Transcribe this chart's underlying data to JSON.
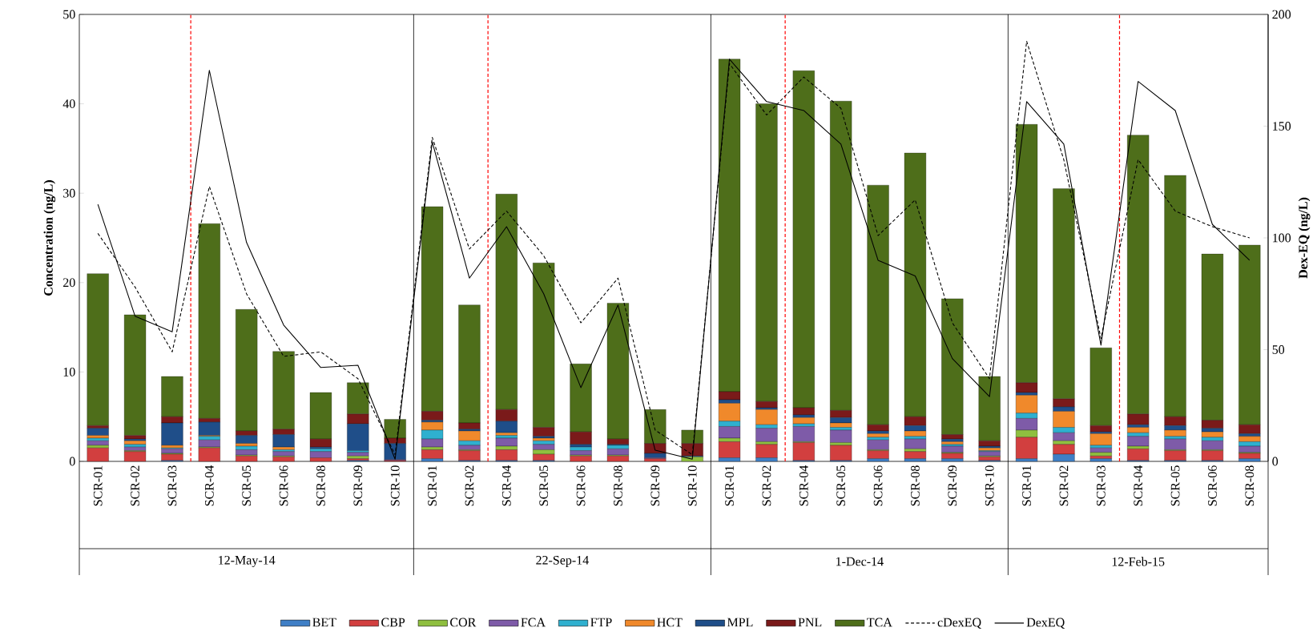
{
  "chart_data": {
    "type": "bar",
    "stacked": true,
    "legend": "bottom",
    "ylabel": "Concentration (ng/L)",
    "y2label": "Dex-EQ (ng/L)",
    "ylim": [
      0,
      50
    ],
    "yticks": [
      0,
      10,
      20,
      30,
      40,
      50
    ],
    "y2lim": [
      0,
      200
    ],
    "y2ticks": [
      0,
      50,
      100,
      150,
      200
    ],
    "categories": [
      "SCR-01",
      "SCR-02",
      "SCR-03",
      "SCR-04",
      "SCR-05",
      "SCR-06",
      "SCR-08",
      "SCR-09",
      "SCR-10",
      "SCR-01",
      "SCR-02",
      "SCR-04",
      "SCR-05",
      "SCR-06",
      "SCR-08",
      "SCR-09",
      "SCR-10",
      "SCR-01",
      "SCR-02",
      "SCR-04",
      "SCR-05",
      "SCR-06",
      "SCR-08",
      "SCR-09",
      "SCR-10",
      "SCR-01",
      "SCR-02",
      "SCR-03",
      "SCR-04",
      "SCR-05",
      "SCR-06",
      "SCR-08"
    ],
    "annotations": [
      "12-May-14",
      "22-Sep-14",
      "1-Dec-14",
      "12-Feb-15"
    ],
    "series": [
      {
        "name": "BET",
        "color": "#3f7fc6",
        "values": [
          0,
          0,
          0.1,
          0,
          0,
          0,
          0,
          0.1,
          0,
          0.3,
          0.1,
          0.1,
          0.1,
          0,
          0,
          0,
          0,
          0.4,
          0.4,
          0.1,
          0.1,
          0.3,
          0.3,
          0.3,
          0.1,
          0.3,
          0.8,
          0.3,
          0.1,
          0.1,
          0.1,
          0.3
        ]
      },
      {
        "name": "CBP",
        "color": "#d23f3f",
        "values": [
          1.5,
          1.1,
          0.7,
          1.5,
          0.6,
          0.5,
          0.4,
          0.2,
          0.1,
          1.0,
          1.1,
          1.2,
          0.7,
          0.6,
          0.6,
          0.3,
          0,
          1.8,
          1.5,
          2.0,
          1.7,
          0.9,
          0.8,
          0.6,
          0.4,
          2.4,
          1.1,
          0.3,
          1.3,
          1.1,
          1.1,
          0.6
        ]
      },
      {
        "name": "COR",
        "color": "#8fbf3f",
        "values": [
          0.3,
          0.1,
          0.1,
          0.1,
          0.1,
          0.1,
          0,
          0.3,
          0,
          0.3,
          0.1,
          0.4,
          0.5,
          0.1,
          0.1,
          0,
          0.5,
          0.4,
          0.3,
          0.1,
          0.3,
          0.1,
          0.3,
          0.1,
          0.1,
          0.8,
          0.4,
          0.4,
          0.3,
          0.1,
          0.1,
          0.1
        ]
      },
      {
        "name": "FCA",
        "color": "#7e5ba8",
        "values": [
          0.5,
          0.4,
          0.5,
          0.8,
          0.6,
          0.5,
          0.7,
          0.4,
          0.1,
          0.9,
          0.5,
          0.9,
          0.6,
          0.5,
          0.7,
          0.1,
          0,
          1.3,
          1.5,
          1.7,
          1.4,
          1.1,
          1.1,
          0.7,
          0.5,
          1.3,
          0.9,
          0.5,
          1.1,
          1.2,
          1.0,
          0.7
        ]
      },
      {
        "name": "FTP",
        "color": "#2fb0cf",
        "values": [
          0.3,
          0.3,
          0.1,
          0.4,
          0.4,
          0.2,
          0.3,
          0.2,
          0,
          1.0,
          0.5,
          0.3,
          0.4,
          0.4,
          0.4,
          0,
          0,
          0.6,
          0.4,
          0.3,
          0.3,
          0.3,
          0.3,
          0.2,
          0.1,
          0.6,
          0.6,
          0.3,
          0.4,
          0.3,
          0.4,
          0.5
        ]
      },
      {
        "name": "HCT",
        "color": "#f0892b",
        "values": [
          0.3,
          0.4,
          0.3,
          0.1,
          0.3,
          0.3,
          0,
          0,
          0,
          0.9,
          1.1,
          0.3,
          0.3,
          0,
          0,
          0,
          0,
          2.0,
          1.7,
          0.7,
          0.5,
          0.4,
          0.6,
          0.3,
          0.3,
          2.0,
          1.8,
          1.3,
          0.6,
          0.7,
          0.6,
          0.6
        ]
      },
      {
        "name": "MPL",
        "color": "#1f4e89",
        "values": [
          0.8,
          0.2,
          2.5,
          1.5,
          0.9,
          1.4,
          0.2,
          3.0,
          1.8,
          0.2,
          0.2,
          1.3,
          0.2,
          0.3,
          0.1,
          0.5,
          0.1,
          0.4,
          0.2,
          0.3,
          0.6,
          0.3,
          0.6,
          0.3,
          0.2,
          0.3,
          0.5,
          0.2,
          0.3,
          0.5,
          0.4,
          0.3
        ]
      },
      {
        "name": "PNL",
        "color": "#7a1a1a",
        "values": [
          0.3,
          0.4,
          0.7,
          0.4,
          0.5,
          0.6,
          0.9,
          1.1,
          0.6,
          1.0,
          0.7,
          1.3,
          1.0,
          1.4,
          0.6,
          1.1,
          1.4,
          0.9,
          0.7,
          0.8,
          0.8,
          0.7,
          1.0,
          0.5,
          0.6,
          1.1,
          0.9,
          0.7,
          1.2,
          1.0,
          0.9,
          1.0
        ]
      },
      {
        "name": "TCA",
        "color": "#4e6e1a",
        "values": [
          17.0,
          13.5,
          4.5,
          21.8,
          13.6,
          8.7,
          5.2,
          3.5,
          2.1,
          22.9,
          13.2,
          24.1,
          18.4,
          7.6,
          15.2,
          3.8,
          1.5,
          37.2,
          33.3,
          37.7,
          34.6,
          26.8,
          29.5,
          15.2,
          7.2,
          28.9,
          23.5,
          8.7,
          31.2,
          27.0,
          18.6,
          20.1
        ]
      },
      {
        "name": "cDexEQ",
        "type": "line",
        "axis": "y2",
        "color": "#000000",
        "line_style": "dashed",
        "values": [
          102,
          78,
          49,
          123,
          75,
          47,
          49,
          37,
          3,
          145,
          95,
          112,
          92,
          62,
          82,
          14,
          3,
          178,
          155,
          172,
          158,
          101,
          117,
          62,
          37,
          188,
          135,
          55,
          135,
          112,
          105,
          100
        ]
      },
      {
        "name": "DexEQ",
        "type": "line",
        "axis": "y2",
        "color": "#000000",
        "line_style": "solid",
        "values": [
          115,
          65,
          58,
          175,
          98,
          61,
          42,
          43,
          1,
          143,
          82,
          105,
          75,
          33,
          70,
          5,
          1,
          180,
          161,
          157,
          142,
          90,
          83,
          46,
          29,
          161,
          142,
          52,
          170,
          157,
          106,
          90
        ]
      }
    ]
  }
}
